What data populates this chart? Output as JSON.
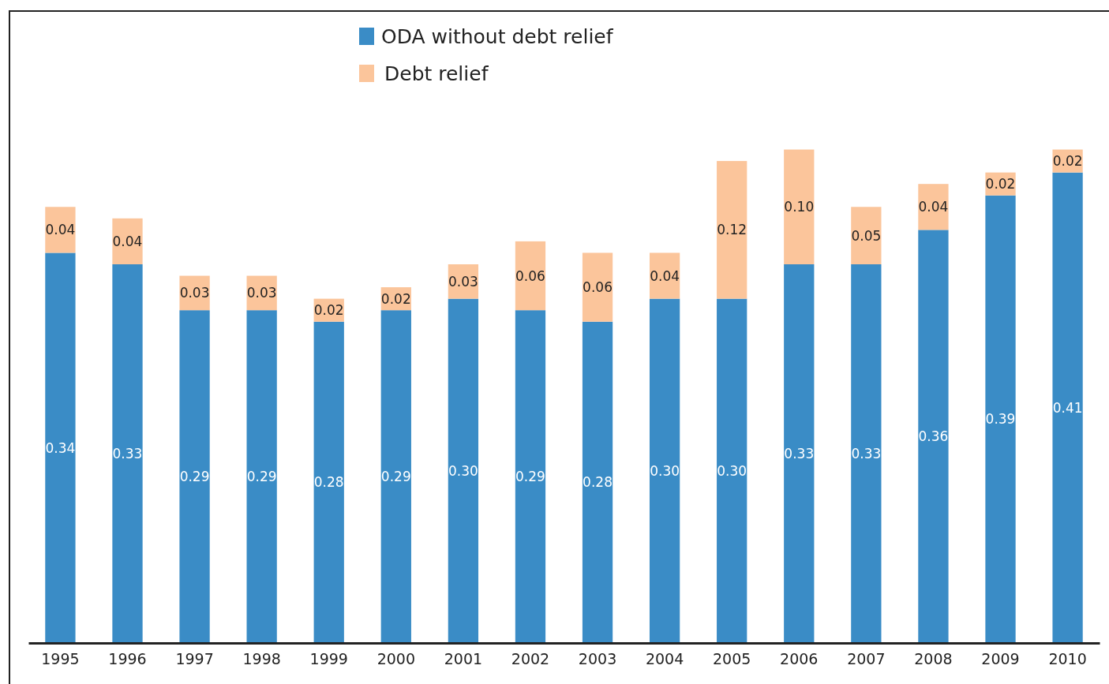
{
  "chart_data": {
    "type": "bar",
    "stacked": true,
    "categories": [
      "1995",
      "1996",
      "1997",
      "1998",
      "1999",
      "2000",
      "2001",
      "2002",
      "2003",
      "2004",
      "2005",
      "2006",
      "2007",
      "2008",
      "2009",
      "2010"
    ],
    "series": [
      {
        "name": "ODA without debt relief",
        "color": "#3a8cc6",
        "values": [
          0.34,
          0.33,
          0.29,
          0.29,
          0.28,
          0.29,
          0.3,
          0.29,
          0.28,
          0.3,
          0.3,
          0.33,
          0.33,
          0.36,
          0.39,
          0.41
        ],
        "value_labels": [
          "0.34",
          "0.33",
          "0.29",
          "0.29",
          "0.28",
          "0.29",
          "0.30",
          "0.29",
          "0.28",
          "0.30",
          "0.30",
          "0.33",
          "0.33",
          "0.36",
          "0.39",
          "0.41"
        ]
      },
      {
        "name": "Debt relief",
        "color": "#fbc59b",
        "values": [
          0.04,
          0.04,
          0.03,
          0.03,
          0.02,
          0.02,
          0.03,
          0.06,
          0.06,
          0.04,
          0.12,
          0.1,
          0.05,
          0.04,
          0.02,
          0.02
        ],
        "value_labels": [
          "0.04",
          "0.04",
          "0.03",
          "0.03",
          "0.02",
          "0.02",
          "0.03",
          "0.06",
          "0.06",
          "0.04",
          "0.12",
          "0.10",
          "0.05",
          "0.04",
          "0.02",
          "0.02"
        ]
      }
    ],
    "ylim": [
      0,
      0.55
    ],
    "tick_labels": "x",
    "legend": "top"
  }
}
